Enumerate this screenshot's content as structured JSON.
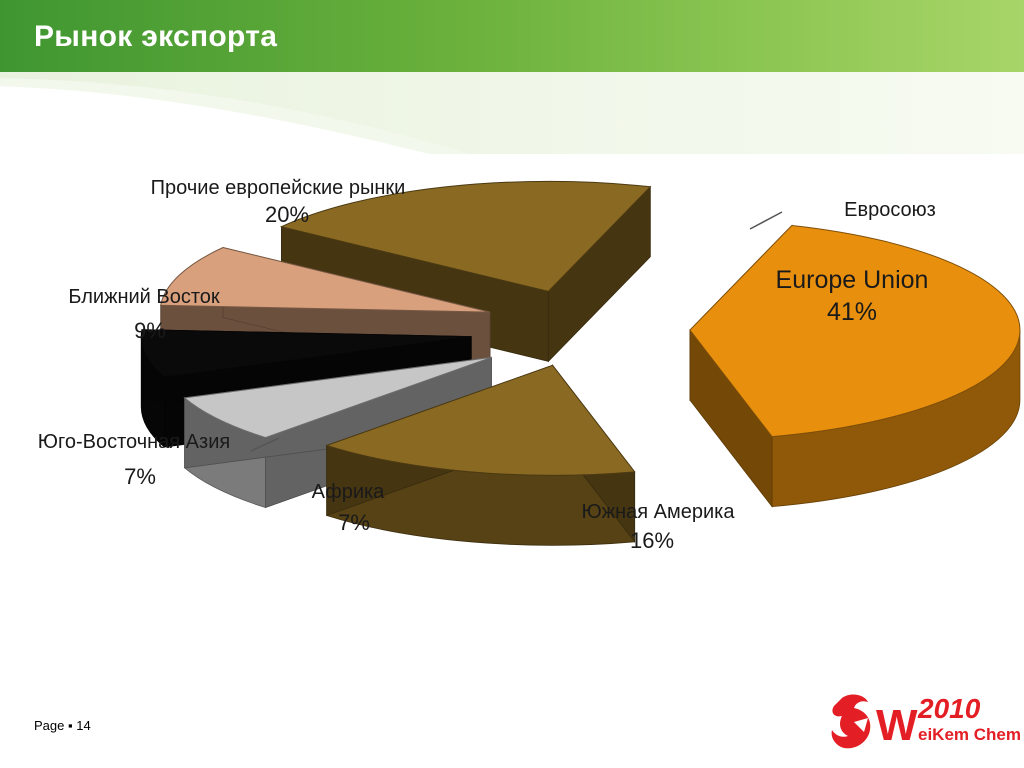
{
  "slide": {
    "title": "Рынок экспорта",
    "page_label": "Page",
    "page_separator": "▪",
    "page_number": "14"
  },
  "logo": {
    "text_w": "W",
    "text_year": "2010",
    "text_company": "eiKem Chemical",
    "color": "#e31e24"
  },
  "chart_data": {
    "type": "pie",
    "title": "",
    "style": "3d-exploded",
    "slices": [
      {
        "label": "Евросоюз",
        "inner_label": "Europe Union",
        "value": 41,
        "value_text": "41%",
        "color": "#e8900e"
      },
      {
        "label": "Южная Америка",
        "value": 16,
        "value_text": "16%",
        "color": "#8a6a22"
      },
      {
        "label": "Африка",
        "value": 7,
        "value_text": "7%",
        "color": "#c6c6c6"
      },
      {
        "label": "Юго-Восточная Азия",
        "value": 7,
        "value_text": "7%",
        "color": "#0a0a0a"
      },
      {
        "label": "Ближний Восток",
        "value": 9,
        "value_text": "9%",
        "color": "#d8a07c"
      },
      {
        "label": "Прочие европейские рынки",
        "value": 20,
        "value_text": "20%",
        "color": "#8a6a22"
      }
    ]
  }
}
